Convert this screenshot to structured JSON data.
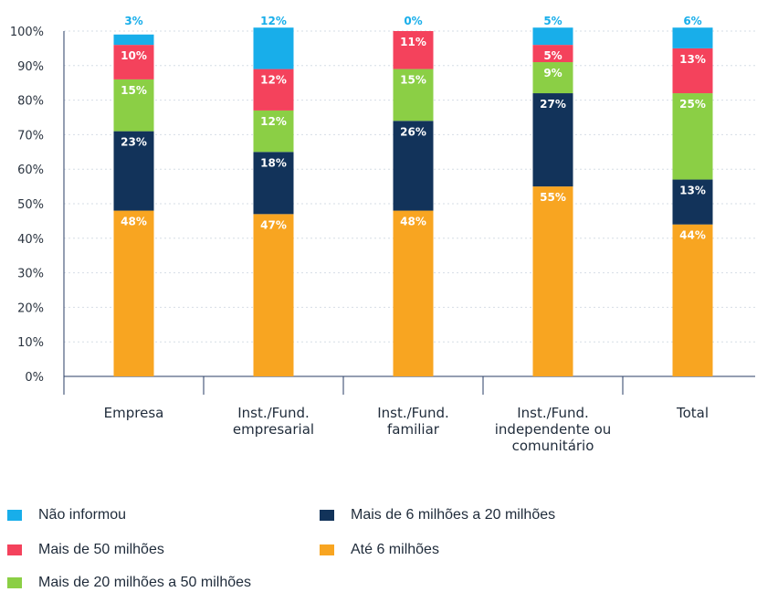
{
  "chart_data": {
    "type": "bar",
    "stacked": true,
    "percent": true,
    "categories": [
      [
        "Empresa"
      ],
      [
        "Inst./Fund.",
        "empresarial"
      ],
      [
        "Inst./Fund.",
        "familiar"
      ],
      [
        "Inst./Fund.",
        "independente ou",
        "comunitário"
      ],
      [
        "Total"
      ]
    ],
    "series": [
      {
        "name": "Até 6 milhões",
        "color": "#F8A521",
        "values": [
          48,
          47,
          48,
          55,
          44
        ],
        "labels": [
          "48%",
          "47%",
          "48%",
          "55%",
          "44%"
        ],
        "label_color": "#ffffff"
      },
      {
        "name": "Mais de 6 milhões a 20 milhões",
        "color": "#12335A",
        "values": [
          23,
          18,
          26,
          27,
          13
        ],
        "labels": [
          "23%",
          "18%",
          "26%",
          "27%",
          "13%"
        ],
        "label_color": "#ffffff"
      },
      {
        "name": "Mais de 20 milhões a 50 milhões",
        "color": "#8BCF45",
        "values": [
          15,
          12,
          15,
          9,
          25
        ],
        "labels": [
          "15%",
          "12%",
          "15%",
          "9%",
          "25%"
        ],
        "label_color": "#ffffff"
      },
      {
        "name": "Mais de 50 milhões",
        "color": "#F4425C",
        "values": [
          10,
          12,
          11,
          5,
          13
        ],
        "labels": [
          "10%",
          "12%",
          "11%",
          "5%",
          "13%"
        ],
        "label_color": "#ffffff"
      },
      {
        "name": "Não informou",
        "color": "#18AEEA",
        "values": [
          3,
          12,
          0,
          5,
          6
        ],
        "labels": [
          "3%",
          "12%",
          "0%",
          "5%",
          "6%"
        ],
        "label_color": "#18AEEA"
      }
    ],
    "yticks": [
      "0%",
      "10%",
      "20%",
      "30%",
      "40%",
      "50%",
      "60%",
      "70%",
      "80%",
      "90%",
      "100%"
    ],
    "ylim": [
      0,
      100
    ],
    "legend_position": "bottom",
    "legend_order": [
      "Não informou",
      "Mais de 6 milhões a 20 milhões",
      "Mais de 50 milhões",
      "Até 6 milhões",
      "Mais de 20 milhões a 50 milhões"
    ]
  }
}
